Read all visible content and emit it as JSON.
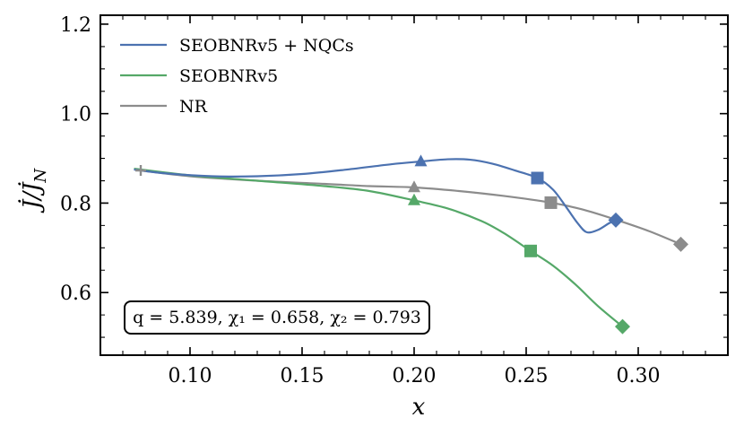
{
  "chart_data": {
    "type": "line",
    "xlabel": "x",
    "ylabel": "J̇/J̇_N",
    "xlim": [
      0.06,
      0.34
    ],
    "ylim": [
      0.46,
      1.22
    ],
    "x_ticks": [
      0.1,
      0.15,
      0.2,
      0.25,
      0.3
    ],
    "x_tick_labels": [
      "0.10",
      "0.15",
      "0.20",
      "0.25",
      "0.30"
    ],
    "y_ticks": [
      0.6,
      0.8,
      1.0,
      1.2
    ],
    "y_tick_labels": [
      "0.6",
      "0.8",
      "1.0",
      "1.2"
    ],
    "grid": false,
    "legend_position": "top-left",
    "annotation": "q = 5.839, χ₁ = 0.658, χ₂ = 0.793",
    "series": [
      {
        "name": "SEOBNRv5 + NQCs",
        "color": "#4c72b0",
        "x": [
          0.075,
          0.09,
          0.11,
          0.13,
          0.15,
          0.17,
          0.19,
          0.203,
          0.215,
          0.225,
          0.235,
          0.245,
          0.255,
          0.262,
          0.268,
          0.273,
          0.277,
          0.282,
          0.287,
          0.29
        ],
        "y": [
          0.875,
          0.866,
          0.86,
          0.86,
          0.865,
          0.875,
          0.887,
          0.893,
          0.898,
          0.897,
          0.888,
          0.873,
          0.856,
          0.83,
          0.79,
          0.755,
          0.735,
          0.74,
          0.755,
          0.762
        ],
        "markers": [
          {
            "x": 0.203,
            "y": 0.893,
            "shape": "triangle"
          },
          {
            "x": 0.255,
            "y": 0.856,
            "shape": "square"
          },
          {
            "x": 0.29,
            "y": 0.762,
            "shape": "diamond"
          }
        ]
      },
      {
        "name": "SEOBNRv5",
        "color": "#55a868",
        "x": [
          0.075,
          0.1,
          0.13,
          0.16,
          0.18,
          0.2,
          0.215,
          0.23,
          0.24,
          0.252,
          0.262,
          0.272,
          0.282,
          0.293
        ],
        "y": [
          0.877,
          0.862,
          0.85,
          0.838,
          0.827,
          0.806,
          0.788,
          0.76,
          0.733,
          0.693,
          0.66,
          0.618,
          0.57,
          0.524
        ],
        "markers": [
          {
            "x": 0.2,
            "y": 0.806,
            "shape": "triangle"
          },
          {
            "x": 0.252,
            "y": 0.693,
            "shape": "square"
          },
          {
            "x": 0.293,
            "y": 0.524,
            "shape": "diamond"
          }
        ]
      },
      {
        "name": "NR",
        "color": "#8c8c8c",
        "x": [
          0.078,
          0.1,
          0.13,
          0.16,
          0.18,
          0.2,
          0.22,
          0.24,
          0.261,
          0.275,
          0.29,
          0.305,
          0.319
        ],
        "y": [
          0.873,
          0.86,
          0.85,
          0.843,
          0.838,
          0.835,
          0.827,
          0.816,
          0.801,
          0.786,
          0.763,
          0.737,
          0.708
        ],
        "markers": [
          {
            "x": 0.078,
            "y": 0.873,
            "shape": "plus"
          },
          {
            "x": 0.2,
            "y": 0.835,
            "shape": "triangle"
          },
          {
            "x": 0.261,
            "y": 0.801,
            "shape": "square"
          },
          {
            "x": 0.319,
            "y": 0.708,
            "shape": "diamond"
          }
        ]
      }
    ]
  }
}
